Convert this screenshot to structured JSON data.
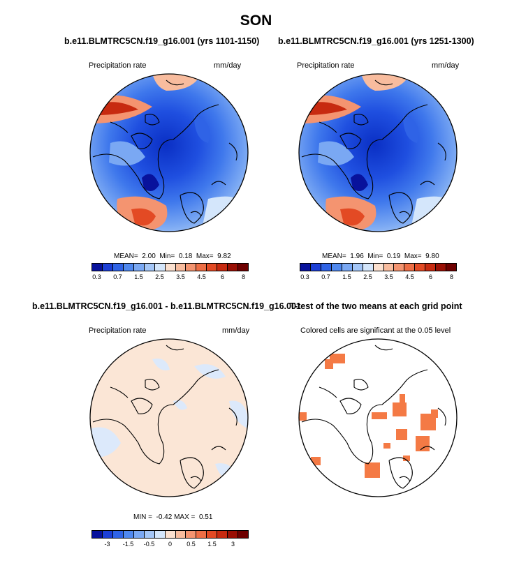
{
  "season": "SON",
  "panels": [
    {
      "title": "b.e11.BLMTRC5CN.f19_g16.001 (yrs 1101-1150)",
      "variable": "Precipitation rate",
      "units": "mm/day",
      "stats": {
        "mean_label": "MEAN=",
        "mean": "2.00",
        "min_label": "Min=",
        "min": "0.18",
        "max_label": "Max=",
        "max": "9.82"
      }
    },
    {
      "title": "b.e11.BLMTRC5CN.f19_g16.001 (yrs 1251-1300)",
      "variable": "Precipitation rate",
      "units": "mm/day",
      "stats": {
        "mean_label": "MEAN=",
        "mean": "1.96",
        "min_label": "Min=",
        "min": "0.19",
        "max_label": "Max=",
        "max": "9.80"
      }
    },
    {
      "title": "b.e11.BLMTRC5CN.f19_g16.001 - b.e11.BLMTRC5CN.f19_g16.001",
      "variable": "Precipitation rate",
      "units": "mm/day",
      "stats": {
        "min_label": "MIN =",
        "min": "-0.42",
        "max_label": "MAX =",
        "max": "0.51"
      }
    },
    {
      "title": "T-test of the two means at each grid point",
      "note": "Colored cells are significant at the 0.05 level"
    }
  ],
  "colorbars": {
    "abs": {
      "colors": [
        "#08129c",
        "#1c3fd6",
        "#2f63e6",
        "#4f88ef",
        "#7aa8f3",
        "#a4c6f7",
        "#d4e6fb",
        "#fbe0cf",
        "#f8bc9e",
        "#f49470",
        "#ee6e45",
        "#e34a24",
        "#c72a10",
        "#9a0f04",
        "#6e0000"
      ],
      "ticks": [
        "0.3",
        "0.7",
        "1.5",
        "2.5",
        "3.5",
        "4.5",
        "6",
        "8"
      ]
    },
    "diff": {
      "colors": [
        "#08129c",
        "#1c3fd6",
        "#2f63e6",
        "#4f88ef",
        "#7aa8f3",
        "#a4c6f7",
        "#d4e6fb",
        "#fbe0cf",
        "#f8bc9e",
        "#f49470",
        "#ee6e45",
        "#e34a24",
        "#c72a10",
        "#9a0f04",
        "#6e0000"
      ],
      "ticks": [
        "-3",
        "-1.5",
        "-0.5",
        "0",
        "0.5",
        "1.5",
        "3"
      ]
    }
  },
  "colors": {
    "significant": "#f47a45",
    "diff_positive": "#fbe6d6",
    "diff_negative": "#dce9fb"
  }
}
